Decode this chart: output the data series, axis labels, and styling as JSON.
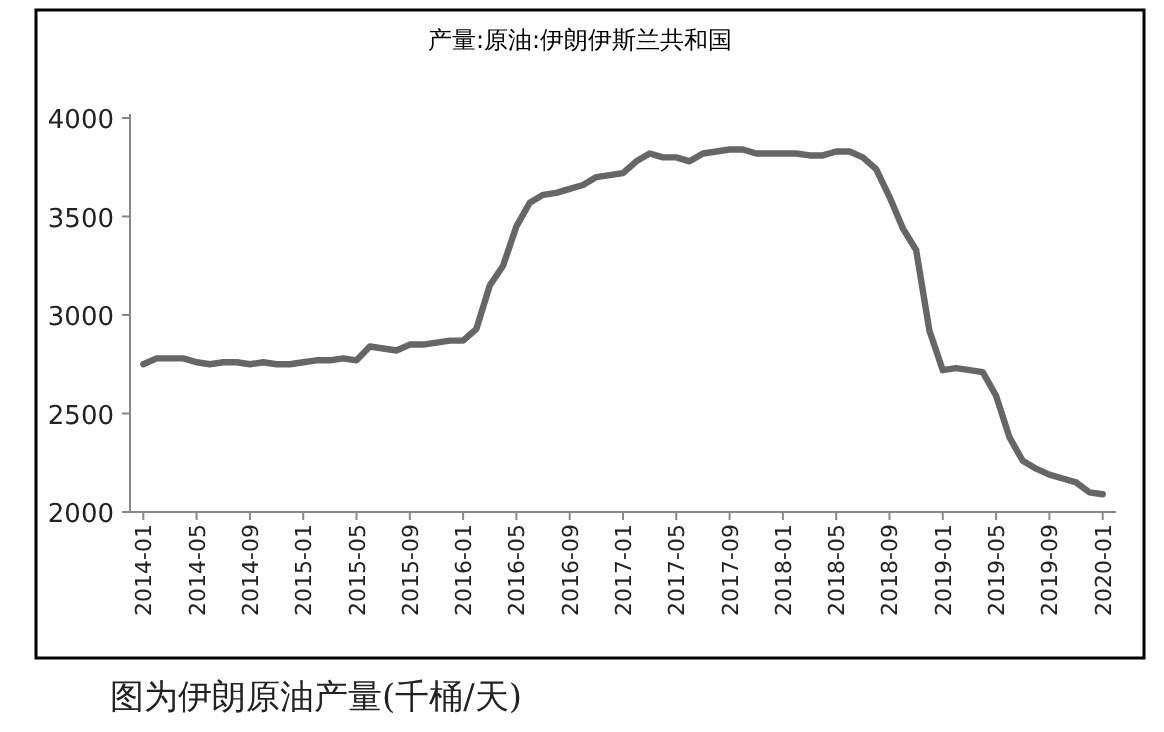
{
  "chart_data": {
    "type": "line",
    "title": "产量:原油:伊朗伊斯兰共和国",
    "annotations": [
      "图为伊朗原油产量(千桶/天)"
    ],
    "x": [
      "2014-01",
      "2014-02",
      "2014-03",
      "2014-04",
      "2014-05",
      "2014-06",
      "2014-07",
      "2014-08",
      "2014-09",
      "2014-10",
      "2014-11",
      "2014-12",
      "2015-01",
      "2015-02",
      "2015-03",
      "2015-04",
      "2015-05",
      "2015-06",
      "2015-07",
      "2015-08",
      "2015-09",
      "2015-10",
      "2015-11",
      "2015-12",
      "2016-01",
      "2016-02",
      "2016-03",
      "2016-04",
      "2016-05",
      "2016-06",
      "2016-07",
      "2016-08",
      "2016-09",
      "2016-10",
      "2016-11",
      "2016-12",
      "2017-01",
      "2017-02",
      "2017-03",
      "2017-04",
      "2017-05",
      "2017-06",
      "2017-07",
      "2017-08",
      "2017-09",
      "2017-10",
      "2017-11",
      "2017-12",
      "2018-01",
      "2018-02",
      "2018-03",
      "2018-04",
      "2018-05",
      "2018-06",
      "2018-07",
      "2018-08",
      "2018-09",
      "2018-10",
      "2018-11",
      "2018-12",
      "2019-01",
      "2019-02",
      "2019-03",
      "2019-04",
      "2019-05",
      "2019-06",
      "2019-07",
      "2019-08",
      "2019-09",
      "2019-10",
      "2019-11",
      "2019-12",
      "2020-01"
    ],
    "series": [
      {
        "color": "#666666",
        "values": [
          2750,
          2780,
          2780,
          2780,
          2760,
          2750,
          2760,
          2760,
          2750,
          2760,
          2750,
          2750,
          2760,
          2770,
          2770,
          2780,
          2770,
          2840,
          2830,
          2820,
          2850,
          2850,
          2860,
          2870,
          2870,
          2930,
          3150,
          3250,
          3450,
          3570,
          3610,
          3620,
          3640,
          3660,
          3700,
          3710,
          3720,
          3780,
          3820,
          3800,
          3800,
          3780,
          3820,
          3830,
          3840,
          3840,
          3820,
          3820,
          3820,
          3820,
          3810,
          3810,
          3830,
          3830,
          3800,
          3740,
          3600,
          3440,
          3330,
          2920,
          2720,
          2730,
          2720,
          2710,
          2590,
          2380,
          2260,
          2220,
          2190,
          2170,
          2150,
          2100,
          2090
        ]
      }
    ],
    "xlim": [
      "2013-12",
      "2020-02"
    ],
    "xticks": [
      "2014-01",
      "2014-05",
      "2014-09",
      "2015-01",
      "2015-05",
      "2015-09",
      "2016-01",
      "2016-05",
      "2016-09",
      "2017-01",
      "2017-05",
      "2017-09",
      "2018-01",
      "2018-05",
      "2018-09",
      "2019-01",
      "2019-05",
      "2019-09",
      "2020-01"
    ],
    "ylim": [
      2000,
      4000
    ],
    "yticks": [
      2000,
      2500,
      3000,
      3500,
      4000
    ],
    "line_style": "solid",
    "grid": false
  }
}
